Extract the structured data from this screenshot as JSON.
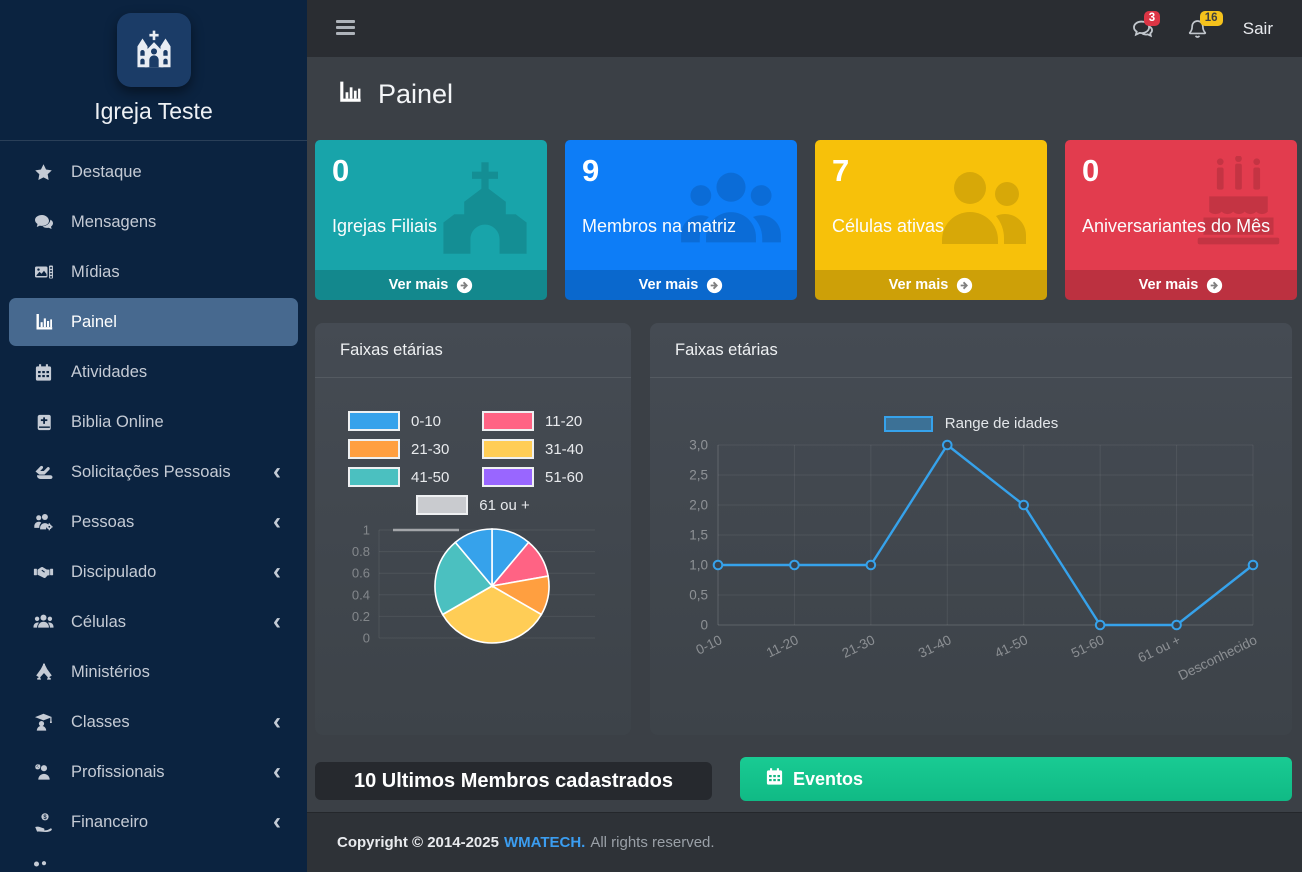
{
  "sidebar": {
    "brand": "Igreja Teste",
    "items": [
      {
        "label": "Destaque",
        "icon": "star",
        "has_submenu": false
      },
      {
        "label": "Mensagens",
        "icon": "comments",
        "has_submenu": false
      },
      {
        "label": "Mídias",
        "icon": "photo-film",
        "has_submenu": false
      },
      {
        "label": "Painel",
        "icon": "chart-bar",
        "has_submenu": false,
        "active": true
      },
      {
        "label": "Atividades",
        "icon": "calendar",
        "has_submenu": false
      },
      {
        "label": "Biblia Online",
        "icon": "bible",
        "has_submenu": false
      },
      {
        "label": "Solicitações Pessoais",
        "icon": "hands",
        "has_submenu": true
      },
      {
        "label": "Pessoas",
        "icon": "users-gear",
        "has_submenu": true
      },
      {
        "label": "Discipulado",
        "icon": "handshake",
        "has_submenu": true
      },
      {
        "label": "Células",
        "icon": "users",
        "has_submenu": true
      },
      {
        "label": "Ministérios",
        "icon": "praying-hands",
        "has_submenu": false
      },
      {
        "label": "Classes",
        "icon": "graduation",
        "has_submenu": true
      },
      {
        "label": "Profissionais",
        "icon": "user-doctor",
        "has_submenu": true
      },
      {
        "label": "Financeiro",
        "icon": "hand-dollar",
        "has_submenu": true
      }
    ]
  },
  "topbar": {
    "messages_badge": "3",
    "notifications_badge": "16",
    "logout_label": "Sair"
  },
  "page": {
    "title": "Painel"
  },
  "cards": [
    {
      "value": "0",
      "label": "Igrejas Filiais",
      "cta": "Ver mais",
      "color": "#18a4aa",
      "icon": "church"
    },
    {
      "value": "9",
      "label": "Membros na matriz",
      "cta": "Ver mais",
      "color": "#0d7df7",
      "icon": "users"
    },
    {
      "value": "7",
      "label": "Células ativas",
      "cta": "Ver mais",
      "color": "#f7c10a",
      "icon": "user-friends"
    },
    {
      "value": "0",
      "label": "Aniversariantes do Mês",
      "cta": "Ver mais",
      "color": "#e23c4e",
      "icon": "birthday-cake"
    }
  ],
  "panels": {
    "latest_members": "10 Ultimos Membros cadastrados",
    "events": "Eventos"
  },
  "footer": {
    "copyright": "Copyright © 2014-2025",
    "brand": "WMATECH.",
    "rights": "All rights reserved."
  },
  "chart_data": [
    {
      "type": "pie",
      "title": "Faixas etárias",
      "categories": [
        "0-10",
        "11-20",
        "21-30",
        "31-40",
        "41-50",
        "51-60",
        "61 ou +",
        "Desconhecido"
      ],
      "values": [
        1,
        1,
        1,
        3,
        2,
        0,
        0,
        1
      ],
      "colors": [
        "#36a2eb",
        "#ff6384",
        "#ff9f40",
        "#ffcd56",
        "#4bc0c0",
        "#9966ff",
        "#c9cbcf",
        "#36a2eb"
      ],
      "legend": [
        {
          "label": "0-10",
          "color": "#36a2eb"
        },
        {
          "label": "11-20",
          "color": "#ff6384"
        },
        {
          "label": "21-30",
          "color": "#ff9f40"
        },
        {
          "label": "31-40",
          "color": "#ffcd56"
        },
        {
          "label": "41-50",
          "color": "#4bc0c0"
        },
        {
          "label": "51-60",
          "color": "#9966ff"
        },
        {
          "label": "61 ou +",
          "color": "#c9cbcf"
        }
      ],
      "hidden_axis_ticks": [
        "1",
        "0.8",
        "0.6",
        "0.4",
        "0.2",
        "0"
      ],
      "legend_position": "top"
    },
    {
      "type": "line",
      "title": "Faixas etárias",
      "categories": [
        "0-10",
        "11-20",
        "21-30",
        "31-40",
        "41-50",
        "51-60",
        "61 ou +",
        "Desconhecido"
      ],
      "series": [
        {
          "name": "Range de idades",
          "values": [
            1,
            1,
            1,
            3,
            2,
            0,
            0,
            1
          ],
          "color": "#36a2eb",
          "legend_fill": "rgba(54,162,235,0.45)"
        }
      ],
      "y_ticks": [
        "0",
        "0,5",
        "1,0",
        "1,5",
        "2,0",
        "2,5",
        "3,0"
      ],
      "ylim": [
        0,
        3
      ],
      "grid": true,
      "legend_position": "top"
    }
  ]
}
